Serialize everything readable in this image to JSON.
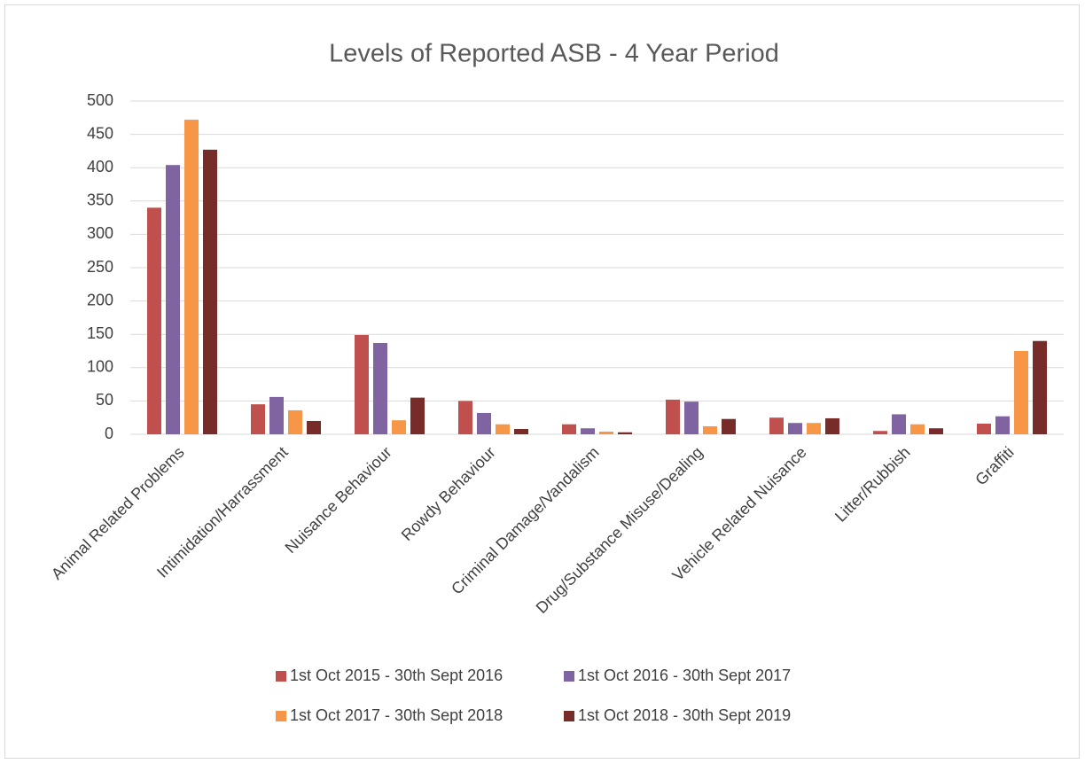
{
  "chart_data": {
    "type": "bar",
    "title": "Levels of Reported ASB - 4 Year Period",
    "categories": [
      "Animal Related Problems",
      "Intimidation/Harrassment",
      "Nuisance Behaviour",
      "Rowdy Behaviour",
      "Criminal Damage/Vandalism",
      "Drug/Substance Misuse/Dealing",
      "Vehicle Related Nuisance",
      "Litter/Rubbish",
      "Graffiti"
    ],
    "series": [
      {
        "name": "1st Oct 2015 - 30th Sept 2016",
        "color": "#c0504d",
        "values": [
          340,
          45,
          149,
          50,
          15,
          52,
          25,
          5,
          16
        ]
      },
      {
        "name": "1st Oct 2016 - 30th Sept 2017",
        "color": "#8064a2",
        "values": [
          404,
          56,
          137,
          32,
          9,
          49,
          17,
          30,
          27
        ]
      },
      {
        "name": "1st Oct 2017 - 30th Sept 2018",
        "color": "#f79646",
        "values": [
          472,
          36,
          21,
          15,
          4,
          12,
          17,
          15,
          125
        ]
      },
      {
        "name": "1st Oct 2018 - 30th Sept 2019",
        "color": "#772c2a",
        "values": [
          427,
          20,
          55,
          8,
          3,
          23,
          24,
          9,
          140
        ]
      }
    ],
    "ylim": [
      0,
      500
    ],
    "yticks": [
      0,
      50,
      100,
      150,
      200,
      250,
      300,
      350,
      400,
      450,
      500
    ],
    "grid": true,
    "legend": "bottom"
  }
}
